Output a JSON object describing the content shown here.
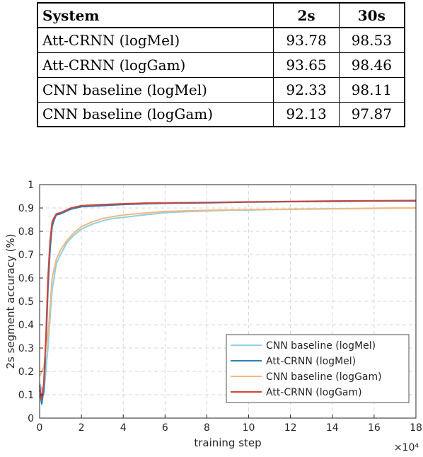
{
  "table": {
    "headers": [
      "System",
      "2s",
      "30s"
    ],
    "rows": [
      [
        "Att-CRNN (logMel)",
        "93.78",
        "98.53"
      ],
      [
        "Att-CRNN (logGam)",
        "93.65",
        "98.46"
      ],
      [
        "CNN baseline (logMel)",
        "92.33",
        "98.11"
      ],
      [
        "CNN baseline (logGam)",
        "92.13",
        "97.87"
      ]
    ]
  },
  "chart_data": {
    "type": "line",
    "title": "",
    "xlabel": "training step",
    "ylabel": "2s segment accuracy (%)",
    "x_multiplier": "×10⁴",
    "xlim": [
      0,
      18
    ],
    "ylim": [
      0,
      1
    ],
    "xticks": [
      0,
      2,
      4,
      6,
      8,
      10,
      12,
      14,
      16,
      18
    ],
    "yticks": [
      0,
      0.1,
      0.2,
      0.3,
      0.4,
      0.5,
      0.6,
      0.7,
      0.8,
      0.9,
      1
    ],
    "grid": true,
    "legend_position": "bottom-right",
    "series": [
      {
        "name": "CNN baseline (logMel)",
        "color": "#8fd0e6",
        "x": [
          0,
          0.2,
          0.4,
          0.6,
          0.8,
          1,
          1.3,
          1.6,
          2,
          2.5,
          3,
          3.5,
          4,
          5,
          6,
          7,
          8,
          9,
          10,
          11,
          12,
          13,
          14,
          15,
          16,
          17,
          18
        ],
        "y": [
          0.15,
          0.1,
          0.3,
          0.55,
          0.66,
          0.7,
          0.75,
          0.78,
          0.81,
          0.83,
          0.845,
          0.855,
          0.86,
          0.87,
          0.88,
          0.884,
          0.887,
          0.89,
          0.891,
          0.893,
          0.894,
          0.895,
          0.896,
          0.897,
          0.898,
          0.899,
          0.9
        ]
      },
      {
        "name": "Att-CRNN (logMel)",
        "color": "#2a7fb8",
        "x": [
          0,
          0.1,
          0.2,
          0.3,
          0.4,
          0.5,
          0.6,
          0.7,
          0.8,
          1,
          1.5,
          2,
          3,
          4,
          5,
          6,
          8,
          10,
          12,
          14,
          16,
          18
        ],
        "y": [
          0.12,
          0.06,
          0.12,
          0.3,
          0.55,
          0.72,
          0.82,
          0.85,
          0.87,
          0.875,
          0.895,
          0.905,
          0.91,
          0.915,
          0.918,
          0.92,
          0.922,
          0.925,
          0.927,
          0.928,
          0.93,
          0.93
        ]
      },
      {
        "name": "CNN baseline (logGam)",
        "color": "#f5b880",
        "x": [
          0,
          0.1,
          0.2,
          0.4,
          0.6,
          0.8,
          1,
          1.3,
          1.6,
          2,
          2.5,
          3,
          3.5,
          4,
          5,
          6,
          7,
          8,
          9,
          10,
          11,
          12,
          13,
          14,
          15,
          16,
          17,
          18
        ],
        "y": [
          0.18,
          0.2,
          0.22,
          0.35,
          0.6,
          0.68,
          0.72,
          0.76,
          0.79,
          0.82,
          0.84,
          0.855,
          0.863,
          0.87,
          0.878,
          0.885,
          0.888,
          0.89,
          0.892,
          0.893,
          0.894,
          0.895,
          0.896,
          0.897,
          0.898,
          0.899,
          0.9,
          0.9
        ]
      },
      {
        "name": "Att-CRNN (logGam)",
        "color": "#d0453a",
        "x": [
          0,
          0.1,
          0.2,
          0.3,
          0.4,
          0.5,
          0.6,
          0.7,
          0.8,
          1,
          1.5,
          2,
          3,
          4,
          5,
          6,
          8,
          10,
          12,
          14,
          16,
          18
        ],
        "y": [
          0.14,
          0.08,
          0.15,
          0.35,
          0.6,
          0.76,
          0.84,
          0.86,
          0.875,
          0.88,
          0.9,
          0.91,
          0.915,
          0.918,
          0.921,
          0.922,
          0.924,
          0.926,
          0.928,
          0.93,
          0.931,
          0.932
        ]
      }
    ]
  }
}
